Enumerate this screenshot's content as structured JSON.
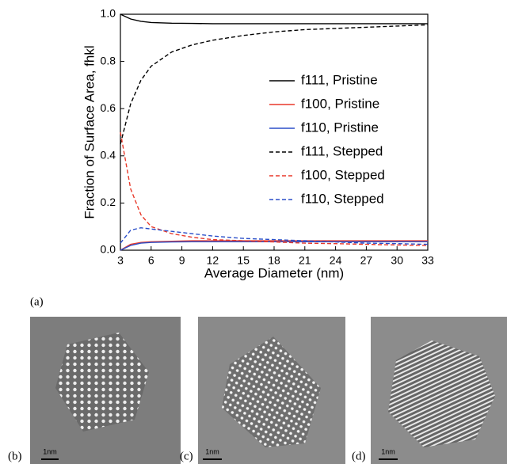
{
  "chart_data": {
    "type": "line",
    "xlabel": "Average Diameter (nm)",
    "ylabel": "Fraction of Surface Area, fhkl",
    "x": [
      3,
      4,
      5,
      6,
      8,
      10,
      12,
      15,
      18,
      21,
      24,
      27,
      30,
      33
    ],
    "series": [
      {
        "name": "f111, Pristine",
        "color": "#000000",
        "style": "solid",
        "values": [
          1.0,
          0.98,
          0.97,
          0.965,
          0.962,
          0.961,
          0.96,
          0.96,
          0.96,
          0.96,
          0.96,
          0.96,
          0.96,
          0.96
        ]
      },
      {
        "name": "f100, Pristine",
        "color": "#e8392a",
        "style": "solid",
        "values": [
          0.0,
          0.025,
          0.033,
          0.036,
          0.038,
          0.04,
          0.04,
          0.04,
          0.04,
          0.04,
          0.04,
          0.04,
          0.04,
          0.04
        ]
      },
      {
        "name": "f110, Pristine",
        "color": "#2b4fc9",
        "style": "solid",
        "values": [
          0.0,
          0.02,
          0.03,
          0.033,
          0.035,
          0.036,
          0.036,
          0.036,
          0.036,
          0.036,
          0.036,
          0.036,
          0.036,
          0.036
        ]
      },
      {
        "name": "f111, Stepped",
        "color": "#000000",
        "style": "dashed",
        "values": [
          0.45,
          0.62,
          0.72,
          0.78,
          0.84,
          0.87,
          0.89,
          0.91,
          0.925,
          0.935,
          0.94,
          0.945,
          0.95,
          0.955
        ]
      },
      {
        "name": "f100, Stepped",
        "color": "#e8392a",
        "style": "dashed",
        "values": [
          0.5,
          0.26,
          0.15,
          0.1,
          0.07,
          0.055,
          0.045,
          0.04,
          0.035,
          0.03,
          0.028,
          0.025,
          0.022,
          0.02
        ]
      },
      {
        "name": "f110, Stepped",
        "color": "#2b4fc9",
        "style": "dashed",
        "values": [
          0.03,
          0.085,
          0.095,
          0.09,
          0.08,
          0.07,
          0.06,
          0.05,
          0.045,
          0.04,
          0.035,
          0.03,
          0.028,
          0.025
        ]
      }
    ],
    "xlim": [
      3,
      33
    ],
    "xticks": [
      3,
      6,
      9,
      12,
      15,
      18,
      21,
      24,
      27,
      30,
      33
    ],
    "ylim": [
      0,
      1.0
    ],
    "yticks": [
      {
        "value": 0,
        "label": "0.0"
      },
      0.2,
      0.4,
      0.6,
      0.8,
      {
        "value": 1.0,
        "label": "1.0"
      }
    ],
    "legend": "right"
  },
  "figure": {
    "panel_labels": [
      "(a)",
      "(b)",
      "(c)",
      "(d)"
    ],
    "scale_bars": [
      "1nm",
      "1nm",
      "1nm"
    ]
  }
}
